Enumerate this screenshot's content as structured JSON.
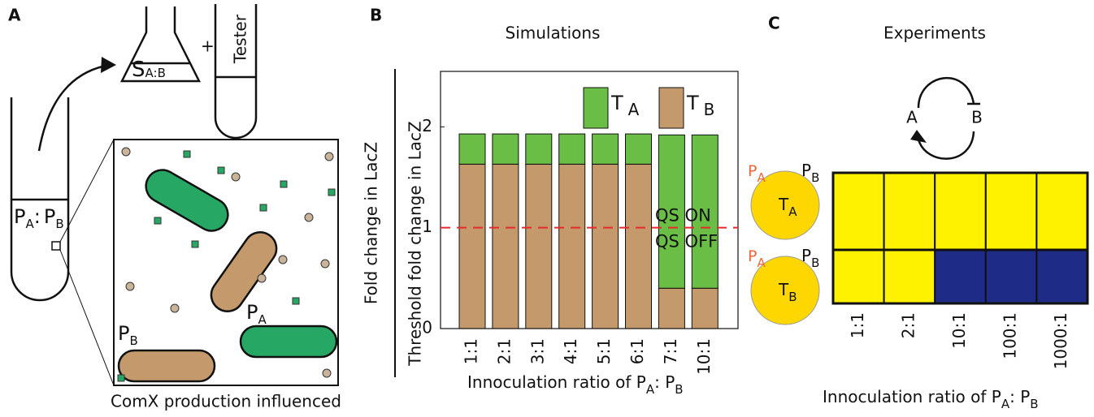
{
  "diagram": {
    "panel_label": "A",
    "supernatant": {
      "main": "S",
      "sub": "A:B"
    },
    "plus": "+",
    "tester": "Tester",
    "culture": {
      "a": "P",
      "a_sub": "A",
      "sep": ":",
      "b": "P",
      "b_sub": "B"
    },
    "cell_a": {
      "main": "P",
      "sub": "A"
    },
    "cell_b": {
      "main": "P",
      "sub": "B"
    },
    "caption": "ComX production influenced"
  },
  "chart_data": [
    {
      "type": "bar",
      "panel_label": "B",
      "title": "Simulations",
      "outer_ylabel": "Fold change in LacZ",
      "ylabel": "Threshold fold change in LacZ",
      "xlabel": {
        "text": "Innoculation ratio of ",
        "a": "P",
        "a_sub": "A",
        "sep": ": ",
        "b": "P",
        "b_sub": "B"
      },
      "categories": [
        "1:1",
        "2:1",
        "3:1",
        "4:1",
        "5:1",
        "6:1",
        "7:1",
        "10:1"
      ],
      "stacked": true,
      "series": [
        {
          "name": "T",
          "subscript": "B",
          "color": "#c49a6c",
          "values": [
            1.63,
            1.63,
            1.63,
            1.63,
            1.63,
            1.63,
            0.4,
            0.4
          ]
        },
        {
          "name": "T",
          "subscript": "A",
          "color": "#6abd45",
          "values": [
            0.3,
            0.3,
            0.3,
            0.3,
            0.3,
            0.3,
            1.52,
            1.52
          ]
        }
      ],
      "ylim": [
        0,
        2.55
      ],
      "yticks": [
        0,
        1,
        2
      ],
      "threshold": 1,
      "threshold_labels": [
        "QS ON",
        "QS OFF"
      ],
      "threshold_color": "#e8282b"
    },
    {
      "type": "heatmap",
      "panel_label": "C",
      "title": "Experiments",
      "network": {
        "a": "A",
        "b": "B"
      },
      "categories": [
        "1:1",
        "2:1",
        "10:1",
        "100:1",
        "1000:1"
      ],
      "rows": [
        {
          "producers": {
            "a": "P",
            "a_sub": "A",
            "b": "P",
            "b_sub": "B"
          },
          "tester": {
            "main": "T",
            "sub": "A"
          },
          "values": [
            1,
            1,
            1,
            1,
            1
          ]
        },
        {
          "producers": {
            "a": "P",
            "a_sub": "A",
            "b": "P",
            "b_sub": "B"
          },
          "tester": {
            "main": "T",
            "sub": "B"
          },
          "values": [
            1,
            1,
            0,
            0,
            0
          ]
        }
      ],
      "colors": [
        "#1e2b87",
        "#fff200"
      ],
      "xlabel": {
        "text": "Innoculation ratio of ",
        "a": "P",
        "a_sub": "A",
        "sep": ": ",
        "b": "P",
        "b_sub": "B"
      }
    }
  ]
}
